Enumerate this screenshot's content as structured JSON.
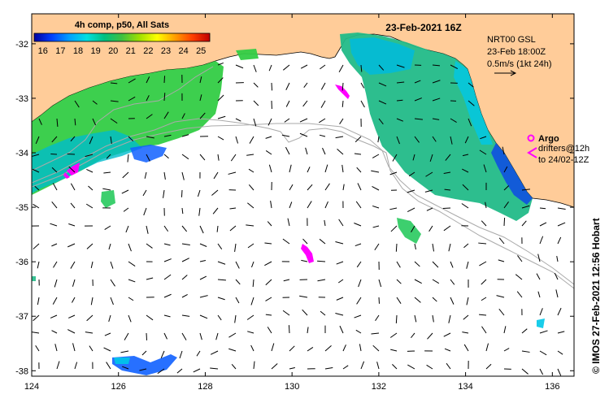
{
  "map": {
    "lon_range": [
      124,
      136.5
    ],
    "lat_range": [
      -38.1,
      -31.45
    ],
    "x_ticks": [
      124,
      126,
      128,
      130,
      132,
      134,
      136
    ],
    "x_tick_labels": [
      "124",
      "126",
      "128",
      "130",
      "132",
      "134",
      "136"
    ],
    "y_ticks": [
      -32,
      -33,
      -34,
      -35,
      -36,
      -37,
      -38
    ],
    "y_tick_labels": [
      "-32",
      "-33",
      "-34",
      "-35",
      "-36",
      "-37",
      "-38"
    ],
    "land_color": "#ffcc99",
    "ocean_color": "#ffffff",
    "bathymetry_color": "#aaaaaa"
  },
  "colorbar": {
    "title": "4h comp, p50, All Sats",
    "tick_labels": [
      "16",
      "17",
      "18",
      "19",
      "20",
      "21",
      "22",
      "23",
      "24",
      "25"
    ],
    "range": [
      15.5,
      25.5
    ],
    "colors": [
      "#0000a0",
      "#0040ff",
      "#00a0ff",
      "#00e0e0",
      "#00c080",
      "#40c040",
      "#a0e000",
      "#ffff00",
      "#ffa000",
      "#ff4000",
      "#c00000"
    ]
  },
  "header": {
    "date_title": "23-Feb-2021 16Z"
  },
  "current_legend": {
    "line1": "NRT00 GSL",
    "line2": "23-Feb 18:00Z",
    "line3": "0.5m/s (1kt 24h)"
  },
  "argo_legend": {
    "argo_label": "Argo",
    "drifters_line1": "drifters@12h",
    "drifters_line2": "to 24/02-12Z",
    "marker_color": "#ff00ff"
  },
  "credit": {
    "text": "© IMOS 27-Feb-2021 12:56 Hobart"
  }
}
